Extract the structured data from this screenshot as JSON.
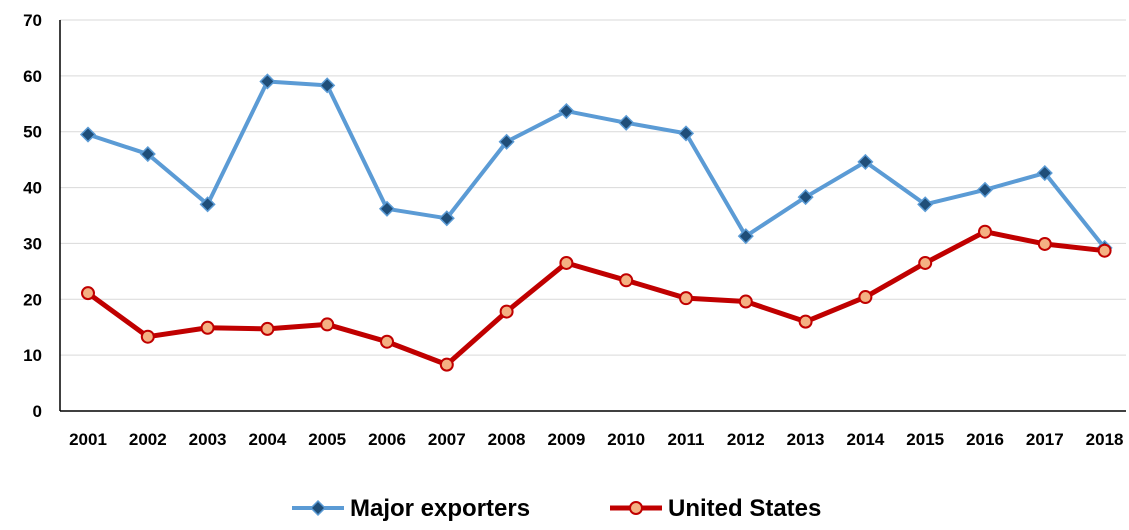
{
  "chart_data": {
    "type": "line",
    "title": "",
    "xlabel": "",
    "ylabel": "",
    "categories": [
      "2001",
      "2002",
      "2003",
      "2004",
      "2005",
      "2006",
      "2007",
      "2008",
      "2009",
      "2010",
      "2011",
      "2012",
      "2013",
      "2014",
      "2015",
      "2016",
      "2017",
      "2018"
    ],
    "ylim": [
      0,
      70
    ],
    "yticks": [
      0,
      10,
      20,
      30,
      40,
      50,
      60,
      70
    ],
    "grid": true,
    "legend_position": "bottom",
    "series": [
      {
        "name": "Major exporters",
        "color": "#5B9BD5",
        "marker": "diamond",
        "marker_color": "#1F4E79",
        "values": [
          49.5,
          46.0,
          37.0,
          59.0,
          58.3,
          36.2,
          34.5,
          48.2,
          53.7,
          51.6,
          49.7,
          31.3,
          38.3,
          44.6,
          37.0,
          39.6,
          42.6,
          29.2
        ]
      },
      {
        "name": "United States",
        "color": "#C00000",
        "marker": "circle",
        "marker_color": "#F4B183",
        "values": [
          21.1,
          13.3,
          14.9,
          14.7,
          15.5,
          12.4,
          8.3,
          17.8,
          26.5,
          23.4,
          20.2,
          19.6,
          16.0,
          20.4,
          26.5,
          32.1,
          29.9,
          28.7
        ]
      }
    ]
  }
}
